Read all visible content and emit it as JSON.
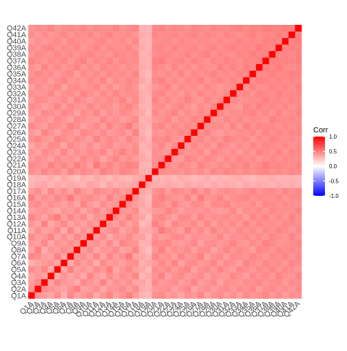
{
  "chart_data": {
    "type": "heatmap",
    "categories": [
      "Q1A",
      "Q2A",
      "Q3A",
      "Q4A",
      "Q5A",
      "Q6A",
      "Q7A",
      "Q8A",
      "Q9A",
      "Q10A",
      "Q11A",
      "Q12A",
      "Q13A",
      "Q14A",
      "Q15A",
      "Q16A",
      "Q17A",
      "Q18A",
      "Q19A",
      "Q20A",
      "Q21A",
      "Q22A",
      "Q23A",
      "Q24A",
      "Q25A",
      "Q26A",
      "Q27A",
      "Q28A",
      "Q29A",
      "Q30A",
      "Q31A",
      "Q32A",
      "Q33A",
      "Q34A",
      "Q35A",
      "Q36A",
      "Q37A",
      "Q38A",
      "Q39A",
      "Q40A",
      "Q41A",
      "Q42A"
    ],
    "values": [
      [
        1
      ],
      [
        0.42,
        1
      ],
      [
        0.38,
        0.45,
        1
      ],
      [
        0.35,
        0.41,
        0.36,
        1
      ],
      [
        0.44,
        0.39,
        0.47,
        0.33,
        1
      ],
      [
        0.31,
        0.36,
        0.4,
        0.42,
        0.35,
        1
      ],
      [
        0.47,
        0.43,
        0.38,
        0.36,
        0.49,
        0.34,
        1
      ],
      [
        0.36,
        0.5,
        0.33,
        0.41,
        0.38,
        0.45,
        0.4,
        1
      ],
      [
        0.4,
        0.37,
        0.46,
        0.35,
        0.42,
        0.39,
        0.44,
        0.38,
        1
      ],
      [
        0.45,
        0.39,
        0.41,
        0.48,
        0.36,
        0.43,
        0.37,
        0.46,
        0.4,
        1
      ],
      [
        0.33,
        0.44,
        0.37,
        0.39,
        0.45,
        0.32,
        0.48,
        0.35,
        0.43,
        0.38,
        1
      ],
      [
        0.41,
        0.35,
        0.49,
        0.34,
        0.4,
        0.46,
        0.36,
        0.42,
        0.37,
        0.44,
        0.39,
        1
      ],
      [
        0.48,
        0.42,
        0.36,
        0.45,
        0.51,
        0.38,
        0.47,
        0.4,
        0.46,
        0.35,
        0.43,
        0.41,
        1
      ],
      [
        0.37,
        0.4,
        0.43,
        0.38,
        0.34,
        0.41,
        0.39,
        0.45,
        0.36,
        0.42,
        0.47,
        0.38,
        0.44,
        1
      ],
      [
        0.42,
        0.46,
        0.39,
        0.44,
        0.41,
        0.37,
        0.43,
        0.36,
        0.48,
        0.4,
        0.35,
        0.45,
        0.39,
        0.42,
        1
      ],
      [
        0.5,
        0.38,
        0.44,
        0.4,
        0.47,
        0.42,
        0.52,
        0.39,
        0.43,
        0.46,
        0.41,
        0.37,
        0.49,
        0.4,
        0.44,
        1
      ],
      [
        0.39,
        0.45,
        0.35,
        0.47,
        0.38,
        0.44,
        0.36,
        0.48,
        0.41,
        0.37,
        0.46,
        0.43,
        0.4,
        0.45,
        0.38,
        0.42,
        1
      ],
      [
        0.3,
        0.33,
        0.36,
        0.29,
        0.34,
        0.31,
        0.35,
        0.32,
        0.3,
        0.37,
        0.33,
        0.28,
        0.36,
        0.31,
        0.34,
        0.32,
        0.35,
        1
      ],
      [
        0.27,
        0.31,
        0.29,
        0.33,
        0.28,
        0.35,
        0.3,
        0.26,
        0.32,
        0.29,
        0.34,
        0.31,
        0.27,
        0.33,
        0.3,
        0.28,
        0.32,
        0.36,
        1
      ],
      [
        0.44,
        0.4,
        0.47,
        0.42,
        0.45,
        0.39,
        0.48,
        0.41,
        0.46,
        0.43,
        0.38,
        0.49,
        0.44,
        0.4,
        0.47,
        0.45,
        0.42,
        0.33,
        0.3,
        1
      ],
      [
        0.46,
        0.43,
        0.4,
        0.49,
        0.42,
        0.47,
        0.41,
        0.5,
        0.44,
        0.39,
        0.52,
        0.43,
        0.48,
        0.41,
        0.45,
        0.5,
        0.47,
        0.31,
        0.29,
        0.46,
        1
      ],
      [
        0.38,
        0.44,
        0.42,
        0.37,
        0.46,
        0.4,
        0.43,
        0.39,
        0.47,
        0.41,
        0.45,
        0.36,
        0.42,
        0.48,
        0.4,
        0.44,
        0.39,
        0.34,
        0.31,
        0.43,
        0.45,
        1
      ],
      [
        0.41,
        0.37,
        0.45,
        0.43,
        0.39,
        0.48,
        0.38,
        0.44,
        0.4,
        0.46,
        0.42,
        0.47,
        0.37,
        0.43,
        0.49,
        0.41,
        0.46,
        0.32,
        0.28,
        0.44,
        0.42,
        0.4,
        1
      ],
      [
        0.35,
        0.42,
        0.38,
        0.46,
        0.44,
        0.36,
        0.47,
        0.41,
        0.39,
        0.45,
        0.37,
        0.43,
        0.46,
        0.38,
        0.42,
        0.4,
        0.44,
        0.3,
        0.33,
        0.41,
        0.47,
        0.39,
        0.45,
        1
      ],
      [
        0.43,
        0.47,
        0.41,
        0.39,
        0.48,
        0.44,
        0.4,
        0.46,
        0.42,
        0.38,
        0.49,
        0.41,
        0.45,
        0.43,
        0.39,
        0.47,
        0.41,
        0.35,
        0.3,
        0.46,
        0.44,
        0.48,
        0.42,
        0.4,
        1
      ],
      [
        0.4,
        0.36,
        0.48,
        0.42,
        0.37,
        0.45,
        0.43,
        0.38,
        0.47,
        0.44,
        0.4,
        0.46,
        0.39,
        0.42,
        0.45,
        0.38,
        0.49,
        0.31,
        0.27,
        0.42,
        0.4,
        0.45,
        0.43,
        0.47,
        0.44,
        1
      ],
      [
        0.47,
        0.41,
        0.39,
        0.45,
        0.43,
        0.4,
        0.49,
        0.44,
        0.37,
        0.42,
        0.46,
        0.39,
        0.48,
        0.41,
        0.44,
        0.51,
        0.4,
        0.33,
        0.29,
        0.45,
        0.48,
        0.41,
        0.46,
        0.42,
        0.47,
        0.43,
        1
      ],
      [
        0.36,
        0.44,
        0.42,
        0.38,
        0.46,
        0.41,
        0.37,
        0.45,
        0.43,
        0.4,
        0.39,
        0.47,
        0.41,
        0.44,
        0.38,
        0.42,
        0.46,
        0.3,
        0.32,
        0.4,
        0.43,
        0.47,
        0.39,
        0.45,
        0.41,
        0.48,
        0.44,
        1
      ],
      [
        0.42,
        0.39,
        0.46,
        0.44,
        0.4,
        0.47,
        0.43,
        0.37,
        0.45,
        0.41,
        0.48,
        0.38,
        0.44,
        0.4,
        0.46,
        0.43,
        0.39,
        0.34,
        0.28,
        0.47,
        0.41,
        0.44,
        0.48,
        0.4,
        0.45,
        0.42,
        0.46,
        0.43,
        1
      ],
      [
        0.45,
        0.43,
        0.37,
        0.41,
        0.48,
        0.39,
        0.46,
        0.42,
        0.4,
        0.47,
        0.41,
        0.45,
        0.43,
        0.39,
        0.44,
        0.48,
        0.42,
        0.31,
        0.3,
        0.43,
        0.46,
        0.4,
        0.44,
        0.48,
        0.42,
        0.39,
        0.45,
        0.41,
        0.47,
        1
      ],
      [
        0.39,
        0.46,
        0.44,
        0.4,
        0.42,
        0.45,
        0.38,
        0.47,
        0.43,
        0.39,
        0.44,
        0.42,
        0.46,
        0.41,
        0.48,
        0.4,
        0.45,
        0.33,
        0.29,
        0.48,
        0.42,
        0.46,
        0.41,
        0.44,
        0.49,
        0.43,
        0.4,
        0.47,
        0.42,
        0.45,
        1
      ],
      [
        0.44,
        0.4,
        0.42,
        0.47,
        0.39,
        0.43,
        0.45,
        0.41,
        0.48,
        0.44,
        0.4,
        0.46,
        0.42,
        0.47,
        0.41,
        0.44,
        0.43,
        0.32,
        0.31,
        0.45,
        0.47,
        0.42,
        0.44,
        0.4,
        0.46,
        0.41,
        0.48,
        0.43,
        0.45,
        0.42,
        0.46,
        1
      ],
      [
        0.37,
        0.45,
        0.4,
        0.43,
        0.47,
        0.38,
        0.44,
        0.46,
        0.41,
        0.43,
        0.47,
        0.4,
        0.45,
        0.39,
        0.43,
        0.46,
        0.41,
        0.29,
        0.33,
        0.42,
        0.44,
        0.48,
        0.4,
        0.46,
        0.43,
        0.45,
        0.41,
        0.47,
        0.44,
        0.4,
        0.43,
        0.45,
        1
      ],
      [
        0.46,
        0.42,
        0.45,
        0.39,
        0.44,
        0.48,
        0.41,
        0.43,
        0.4,
        0.46,
        0.42,
        0.48,
        0.39,
        0.45,
        0.42,
        0.47,
        0.44,
        0.34,
        0.3,
        0.46,
        0.49,
        0.43,
        0.45,
        0.41,
        0.47,
        0.44,
        0.5,
        0.42,
        0.46,
        0.48,
        0.44,
        0.47,
        0.43,
        1
      ],
      [
        0.41,
        0.47,
        0.43,
        0.45,
        0.4,
        0.44,
        0.47,
        0.39,
        0.46,
        0.42,
        0.45,
        0.41,
        0.47,
        0.43,
        0.46,
        0.42,
        0.48,
        0.31,
        0.28,
        0.44,
        0.43,
        0.46,
        0.42,
        0.48,
        0.41,
        0.47,
        0.43,
        0.45,
        0.49,
        0.44,
        0.46,
        0.43,
        0.48,
        0.45,
        1
      ],
      [
        0.43,
        0.39,
        0.47,
        0.42,
        0.46,
        0.41,
        0.44,
        0.48,
        0.42,
        0.45,
        0.4,
        0.47,
        0.43,
        0.46,
        0.4,
        0.45,
        0.42,
        0.33,
        0.31,
        0.47,
        0.45,
        0.41,
        0.48,
        0.43,
        0.46,
        0.42,
        0.47,
        0.44,
        0.43,
        0.49,
        0.45,
        0.48,
        0.44,
        0.5,
        0.46,
        1
      ],
      [
        0.48,
        0.44,
        0.41,
        0.46,
        0.43,
        0.47,
        0.4,
        0.45,
        0.49,
        0.41,
        0.46,
        0.43,
        0.48,
        0.42,
        0.47,
        0.44,
        0.45,
        0.32,
        0.3,
        0.48,
        0.51,
        0.44,
        0.46,
        0.47,
        0.43,
        0.48,
        0.45,
        0.42,
        0.47,
        0.45,
        0.49,
        0.46,
        0.44,
        0.48,
        0.47,
        0.5,
        1
      ],
      [
        0.4,
        0.46,
        0.44,
        0.41,
        0.47,
        0.43,
        0.46,
        0.42,
        0.45,
        0.48,
        0.43,
        0.44,
        0.41,
        0.47,
        0.45,
        0.43,
        0.46,
        0.3,
        0.32,
        0.44,
        0.46,
        0.47,
        0.43,
        0.45,
        0.48,
        0.44,
        0.46,
        0.49,
        0.42,
        0.47,
        0.45,
        0.44,
        0.48,
        0.46,
        0.5,
        0.47,
        0.49,
        1
      ],
      [
        0.45,
        0.41,
        0.46,
        0.48,
        0.42,
        0.45,
        0.43,
        0.47,
        0.41,
        0.44,
        0.48,
        0.42,
        0.46,
        0.44,
        0.43,
        0.47,
        0.41,
        0.33,
        0.29,
        0.46,
        0.47,
        0.43,
        0.48,
        0.44,
        0.45,
        0.47,
        0.43,
        0.46,
        0.48,
        0.44,
        0.47,
        0.49,
        0.45,
        0.48,
        0.46,
        0.51,
        0.48,
        0.47,
        1
      ],
      [
        0.38,
        0.44,
        0.4,
        0.43,
        0.46,
        0.4,
        0.47,
        0.44,
        0.43,
        0.41,
        0.45,
        0.47,
        0.42,
        0.44,
        0.46,
        0.41,
        0.47,
        0.31,
        0.3,
        0.43,
        0.45,
        0.46,
        0.42,
        0.47,
        0.44,
        0.43,
        0.46,
        0.45,
        0.43,
        0.47,
        0.44,
        0.46,
        0.48,
        0.45,
        0.47,
        0.46,
        0.49,
        0.48,
        0.47,
        1
      ],
      [
        0.44,
        0.4,
        0.45,
        0.41,
        0.43,
        0.47,
        0.42,
        0.46,
        0.44,
        0.47,
        0.41,
        0.45,
        0.48,
        0.43,
        0.44,
        0.46,
        0.42,
        0.32,
        0.31,
        0.47,
        0.44,
        0.45,
        0.47,
        0.43,
        0.46,
        0.48,
        0.44,
        0.47,
        0.45,
        0.43,
        0.48,
        0.46,
        0.44,
        0.47,
        0.49,
        0.45,
        0.48,
        0.46,
        0.5,
        0.47,
        1
      ],
      [
        0.42,
        0.45,
        0.43,
        0.47,
        0.41,
        0.44,
        0.46,
        0.43,
        0.47,
        0.42,
        0.46,
        0.44,
        0.43,
        0.48,
        0.42,
        0.45,
        0.47,
        0.3,
        0.29,
        0.45,
        0.48,
        0.44,
        0.46,
        0.45,
        0.43,
        0.47,
        0.46,
        0.44,
        0.48,
        0.46,
        0.45,
        0.47,
        0.49,
        0.46,
        0.48,
        0.47,
        0.5,
        0.49,
        0.48,
        0.51,
        0.49,
        1
      ]
    ],
    "legend_title": "Corr",
    "colors": {
      "low": "#0000ff",
      "mid": "#ffffff",
      "high": "#ff0000"
    },
    "zlim": [
      -1,
      1
    ],
    "zticks": [
      {
        "value": 1,
        "label": "1.0"
      },
      {
        "value": 0.5,
        "label": "0.5"
      },
      {
        "value": 0,
        "label": "0.0"
      },
      {
        "value": -0.5,
        "label": "-0.5"
      },
      {
        "value": -1,
        "label": "-1.0"
      }
    ]
  }
}
